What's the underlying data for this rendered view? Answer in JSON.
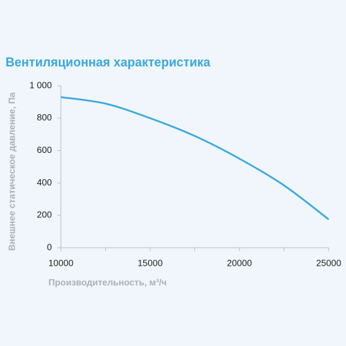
{
  "chart_data": {
    "type": "line",
    "title": "Вентиляционная характеристика",
    "x_label": "Производительность, м³/ч",
    "y_label": "Внешнее статическое давление, Па",
    "x": [
      10000,
      12500,
      15000,
      17500,
      20000,
      22500,
      25000
    ],
    "series": [
      {
        "name": "Характеристика",
        "color": "#3aa8dc",
        "values": [
          930,
          890,
          800,
          690,
          550,
          385,
          175
        ]
      }
    ],
    "xlim": [
      10000,
      25000
    ],
    "xticks": [
      10000,
      15000,
      20000,
      25000
    ],
    "xminorticks": [
      12500,
      17500,
      22500
    ],
    "ylim": [
      0,
      1000
    ],
    "yticks": [
      0,
      200,
      400,
      600,
      800,
      {
        "value": 1000,
        "label": "1 000"
      }
    ],
    "grid": false,
    "legend": false
  }
}
